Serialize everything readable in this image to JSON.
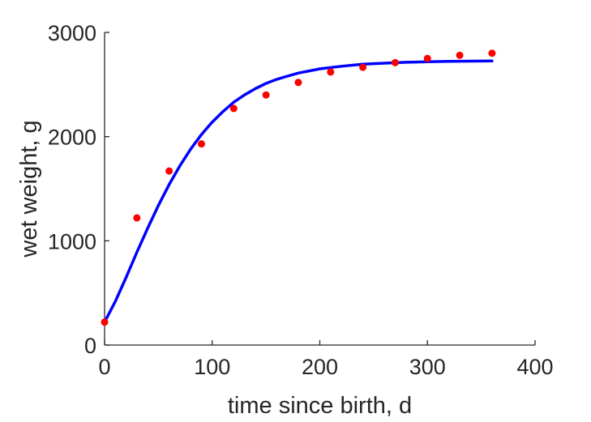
{
  "chart_data": {
    "type": "scatter",
    "title": "",
    "xlabel": "time since birth, d",
    "ylabel": "wet weight, g",
    "xlim": [
      0,
      400
    ],
    "ylim": [
      0,
      3000
    ],
    "xticks": [
      0,
      100,
      200,
      300,
      400
    ],
    "yticks": [
      0,
      1000,
      2000,
      3000
    ],
    "xtick_labels": [
      "0",
      "100",
      "200",
      "300",
      "400"
    ],
    "ytick_labels": [
      "0",
      "1000",
      "2000",
      "3000"
    ],
    "grid": false,
    "legend": "none",
    "series": [
      {
        "kind": "scatter",
        "color": "#ff0000",
        "points": [
          [
            0,
            220
          ],
          [
            30,
            1220
          ],
          [
            60,
            1670
          ],
          [
            90,
            1930
          ],
          [
            120,
            2270
          ],
          [
            150,
            2400
          ],
          [
            180,
            2520
          ],
          [
            210,
            2620
          ],
          [
            240,
            2665
          ],
          [
            270,
            2710
          ],
          [
            300,
            2750
          ],
          [
            330,
            2780
          ],
          [
            360,
            2800
          ]
        ]
      },
      {
        "kind": "line",
        "color": "#0000ff",
        "points": [
          [
            0,
            220
          ],
          [
            10,
            420
          ],
          [
            20,
            650
          ],
          [
            30,
            890
          ],
          [
            40,
            1120
          ],
          [
            50,
            1340
          ],
          [
            60,
            1540
          ],
          [
            70,
            1720
          ],
          [
            80,
            1880
          ],
          [
            90,
            2020
          ],
          [
            100,
            2140
          ],
          [
            110,
            2240
          ],
          [
            120,
            2330
          ],
          [
            130,
            2400
          ],
          [
            140,
            2460
          ],
          [
            150,
            2510
          ],
          [
            160,
            2550
          ],
          [
            170,
            2580
          ],
          [
            180,
            2610
          ],
          [
            190,
            2630
          ],
          [
            200,
            2650
          ],
          [
            220,
            2675
          ],
          [
            240,
            2695
          ],
          [
            260,
            2705
          ],
          [
            280,
            2713
          ],
          [
            300,
            2718
          ],
          [
            320,
            2722
          ],
          [
            340,
            2724
          ],
          [
            360,
            2726
          ]
        ]
      }
    ]
  }
}
